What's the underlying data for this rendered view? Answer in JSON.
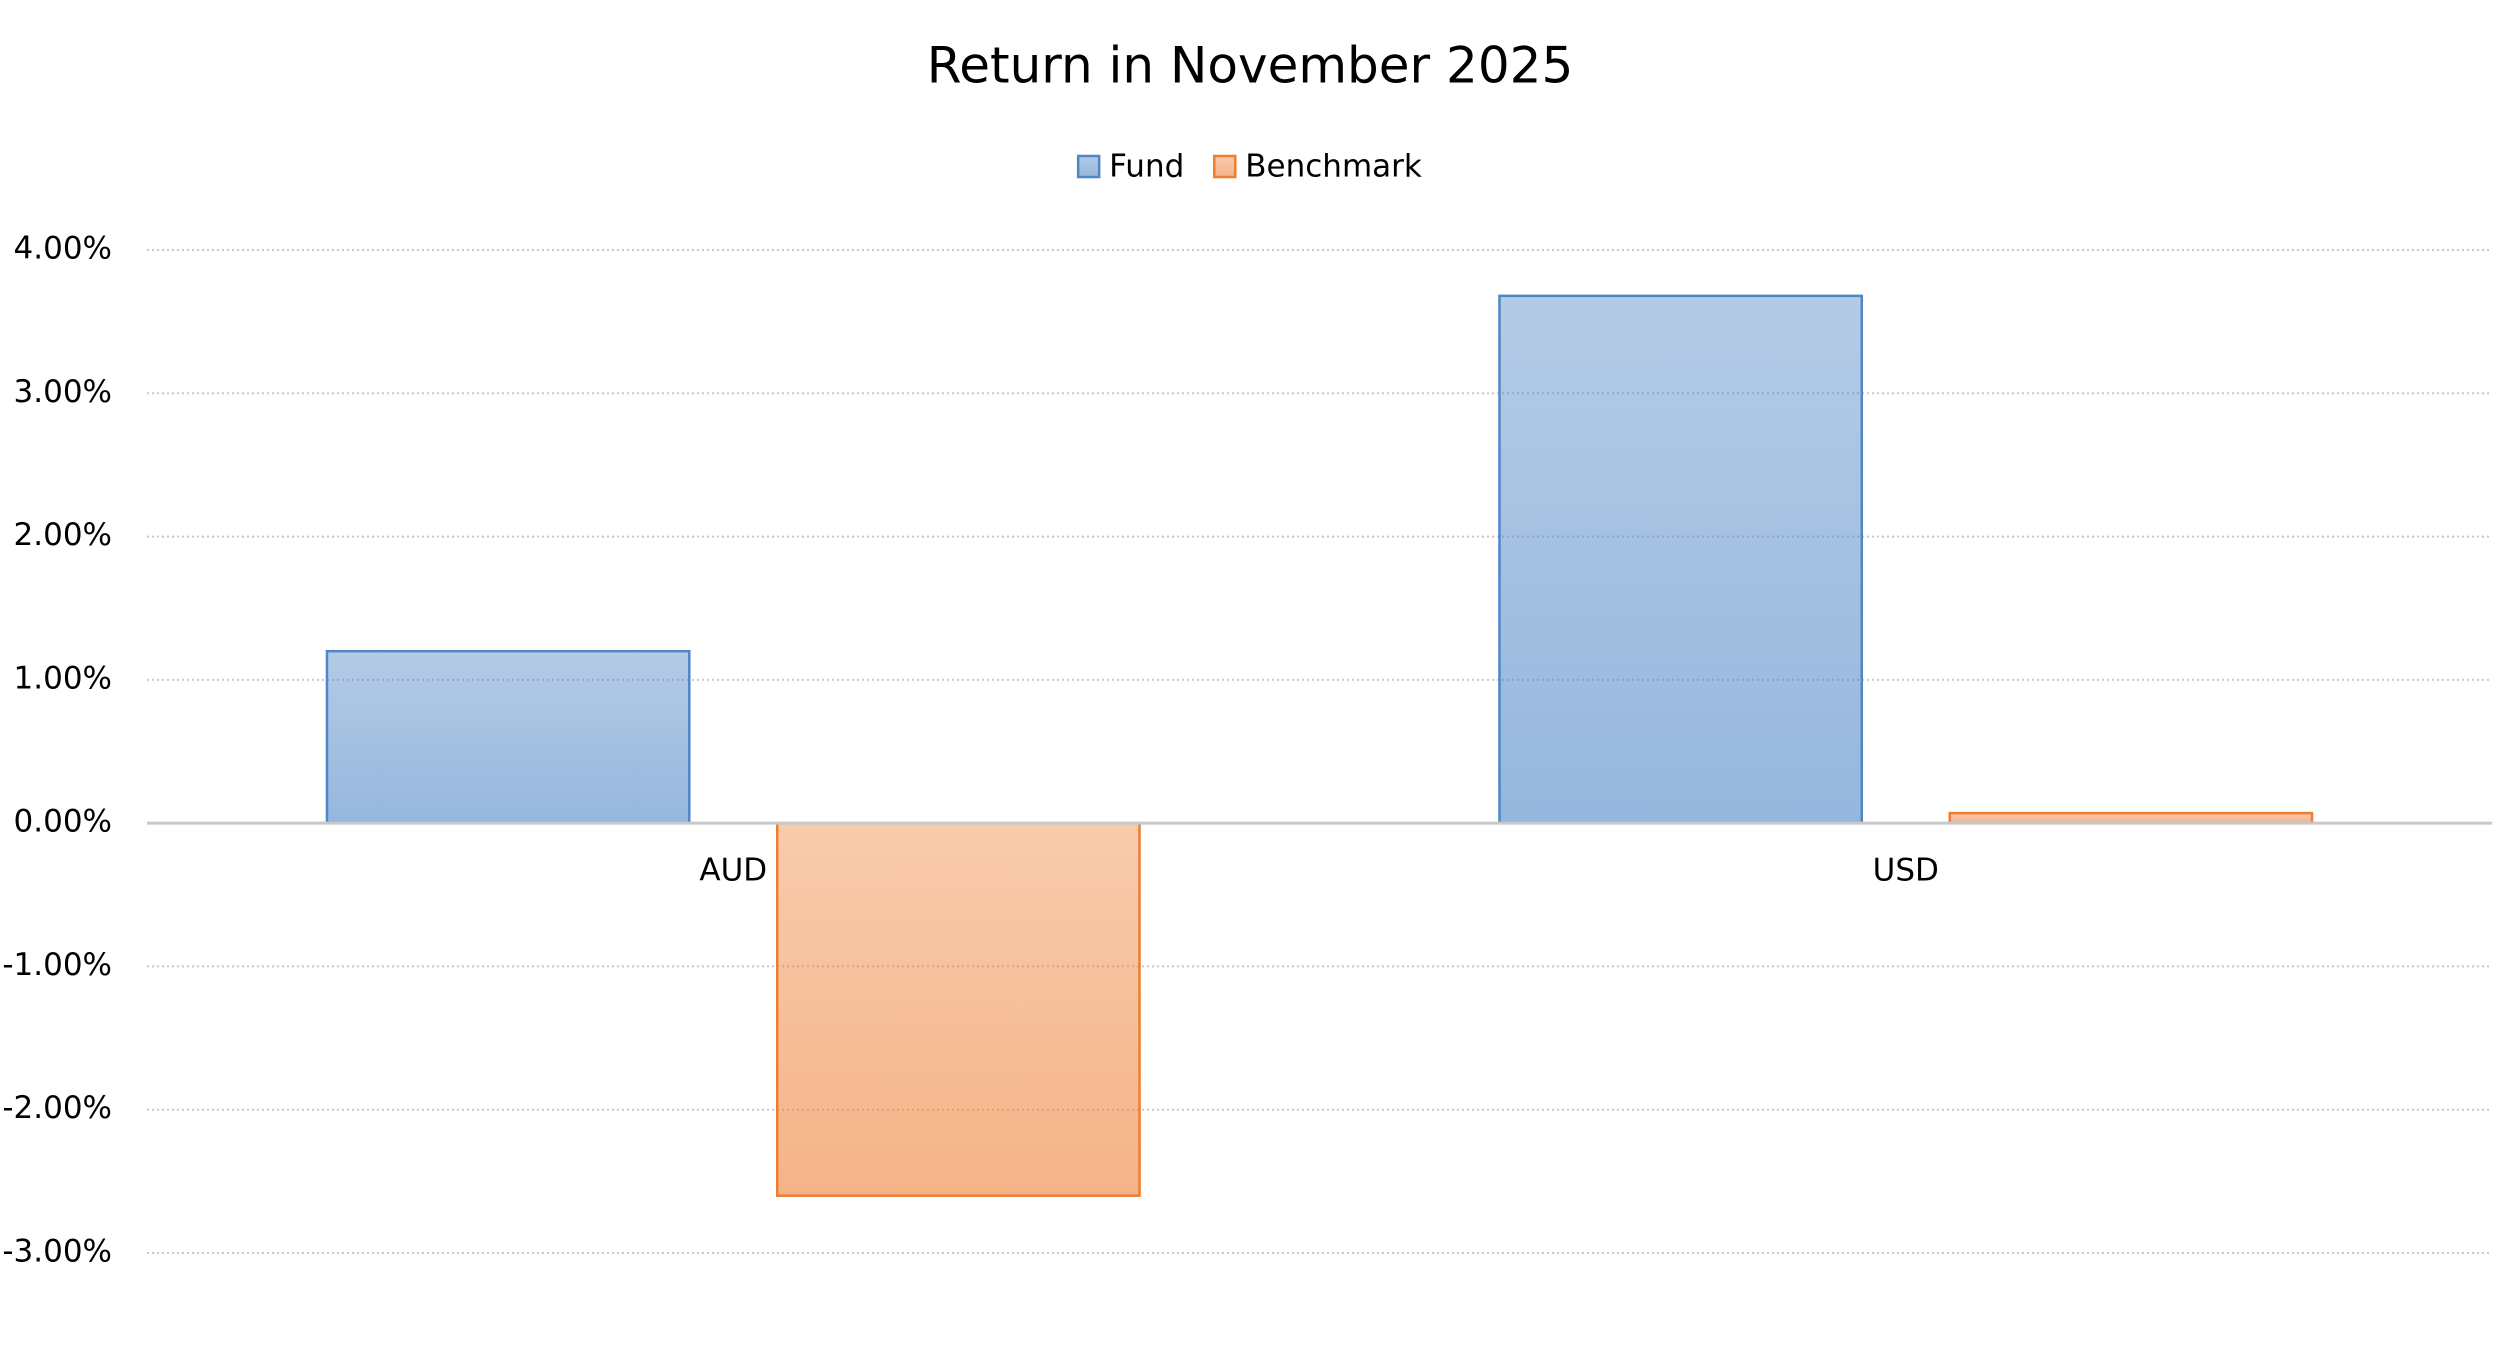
{
  "chart_data": {
    "type": "bar",
    "title": "Return in November 2025",
    "categories": [
      "AUD",
      "USD"
    ],
    "series": [
      {
        "name": "Fund",
        "color": "#4f86c6",
        "values": [
          1.2,
          3.68
        ]
      },
      {
        "name": "Benchmark",
        "color": "#ed7d31",
        "values": [
          -2.6,
          0.07
        ]
      }
    ],
    "ylim": [
      -3,
      4
    ],
    "yticks": [
      {
        "value": -3,
        "label": "-3.00%"
      },
      {
        "value": -2,
        "label": "-2.00%"
      },
      {
        "value": -1,
        "label": "-1.00%"
      },
      {
        "value": 0,
        "label": "0.00%"
      },
      {
        "value": 1,
        "label": "1.00%"
      },
      {
        "value": 2,
        "label": "2.00%"
      },
      {
        "value": 3,
        "label": "3.00%"
      },
      {
        "value": 4,
        "label": "4.00%"
      }
    ],
    "grid": true,
    "legend": "top"
  }
}
